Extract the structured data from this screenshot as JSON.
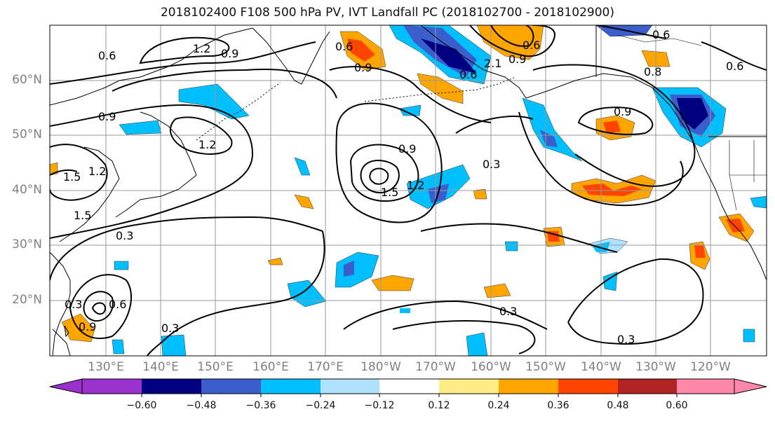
{
  "title": "2018102400 F108 500 hPa PV, IVT Landfall PC (2018102700 - 2018102900)",
  "lat_labels": [
    "60°N",
    "50°N",
    "40°N",
    "30°N",
    "20°N"
  ],
  "lon_labels": [
    "130°E",
    "140°E",
    "150°E",
    "160°E",
    "170°E",
    "180°W",
    "170°W",
    "160°W",
    "150°W",
    "140°W",
    "130°W",
    "120°W"
  ],
  "colorbar": {
    "tick_labels": [
      "−0.60",
      "−0.48",
      "−0.36",
      "−0.24",
      "−0.12",
      "0.12",
      "0.24",
      "0.36",
      "0.48",
      "0.60"
    ],
    "colors": [
      "#9932cc",
      "#000080",
      "#3a5fcd",
      "#00bfff",
      "#b0e2ff",
      "#ffffff",
      "#ffee88",
      "#ffa500",
      "#ff4500",
      "#b22222",
      "#ff88aa"
    ]
  },
  "contour_labels": [
    "0.6",
    "1.2",
    "0.9",
    "0.6",
    "0.9",
    "0.6",
    "2.1",
    "0.9",
    "0.8",
    "0.6",
    "0.6",
    "0.9",
    "1.2",
    "1.5",
    "1.2",
    "0.9",
    "1.5",
    "1.2",
    "0.3",
    "0.9",
    "0.3",
    "0.3",
    "0.6",
    "0.9",
    "0.3",
    "0.3",
    "0.3",
    "1.5",
    "0.6"
  ]
}
